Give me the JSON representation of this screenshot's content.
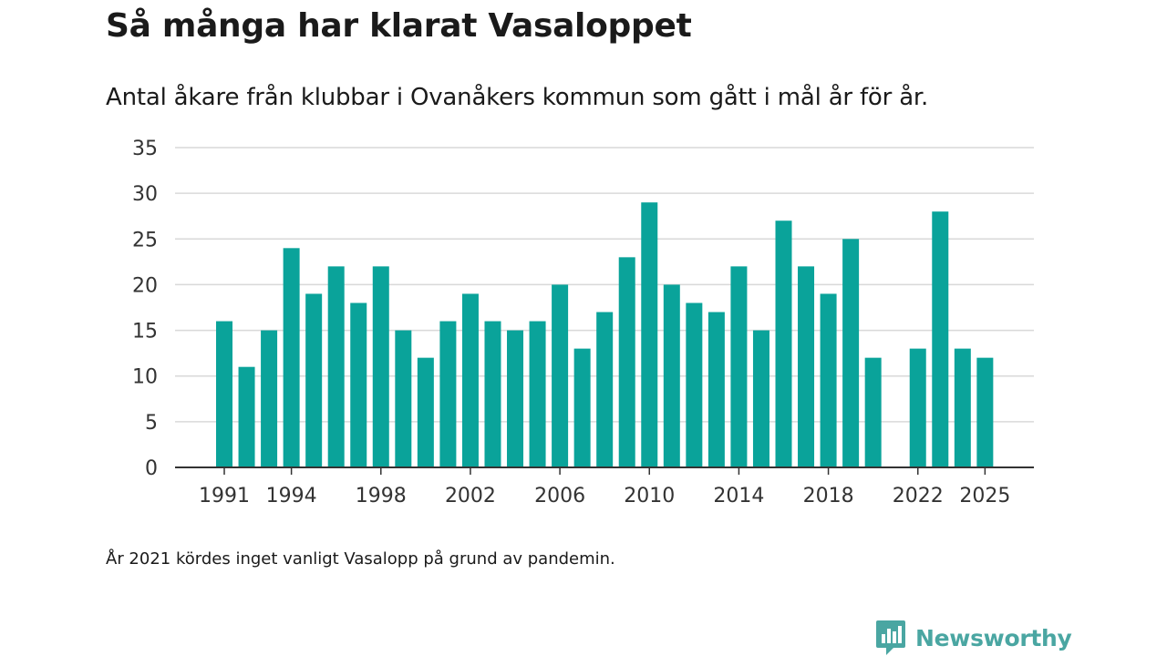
{
  "header": {
    "title": "Så många har klarat Vasaloppet",
    "subtitle": "Antal åkare från klubbar i Ovanåkers kommun som gått i mål år för år."
  },
  "footer": {
    "note": "År 2021 kördes inget vanligt Vasalopp på grund av pandemin.",
    "brand": "Newsworthy",
    "brand_icon": "newsworthy-logo-icon"
  },
  "colors": {
    "bar": "#0aa39a",
    "grid": "#d9d9d9",
    "axis": "#333333",
    "brand": "#4aa6a2"
  },
  "chart_data": {
    "type": "bar",
    "title": "Så många har klarat Vasaloppet",
    "xlabel": "",
    "ylabel": "",
    "ylim": [
      0,
      35
    ],
    "yticks": [
      0,
      5,
      10,
      15,
      20,
      25,
      30,
      35
    ],
    "grid": true,
    "legend": "none",
    "xtick_labels": [
      "1991",
      "1994",
      "1998",
      "2002",
      "2006",
      "2010",
      "2014",
      "2018",
      "2022",
      "2025"
    ],
    "categories": [
      1991,
      1992,
      1993,
      1994,
      1995,
      1996,
      1997,
      1998,
      1999,
      2000,
      2001,
      2002,
      2003,
      2004,
      2005,
      2006,
      2007,
      2008,
      2009,
      2010,
      2011,
      2012,
      2013,
      2014,
      2015,
      2016,
      2017,
      2018,
      2019,
      2020,
      2021,
      2022,
      2023,
      2024,
      2025
    ],
    "values": [
      16,
      11,
      15,
      24,
      19,
      22,
      18,
      22,
      15,
      12,
      16,
      19,
      16,
      15,
      16,
      20,
      13,
      17,
      23,
      29,
      20,
      18,
      17,
      22,
      15,
      27,
      22,
      19,
      25,
      12,
      null,
      13,
      28,
      13,
      12
    ]
  }
}
